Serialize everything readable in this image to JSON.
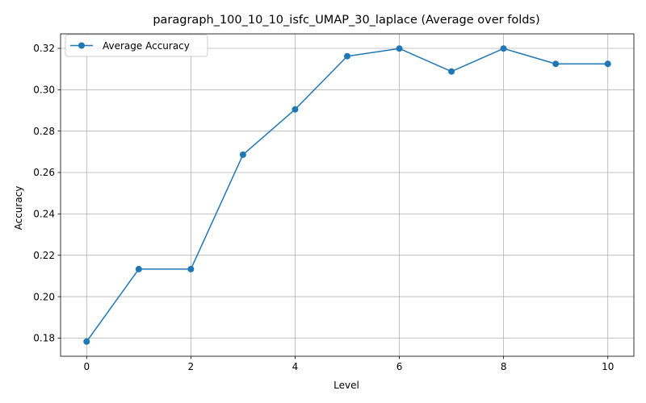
{
  "chart_data": {
    "type": "line",
    "title": "paragraph_100_10_10_isfc_UMAP_30_laplace (Average over folds)",
    "xlabel": "Level",
    "ylabel": "Accuracy",
    "xlim": [
      -0.5,
      10.5
    ],
    "ylim": [
      0.1712,
      0.327
    ],
    "x_ticks": [
      0,
      2,
      4,
      6,
      8,
      10
    ],
    "y_ticks": [
      0.18,
      0.2,
      0.22,
      0.24,
      0.26,
      0.28,
      0.3,
      0.32
    ],
    "grid": true,
    "legend_position": "upper-left",
    "series": [
      {
        "name": "Average Accuracy",
        "color": "#1f77b4",
        "marker": "circle",
        "x": [
          0,
          1,
          2,
          3,
          4,
          5,
          6,
          7,
          8,
          9,
          10
        ],
        "y": [
          0.1783,
          0.2133,
          0.2133,
          0.2686,
          0.2905,
          0.3162,
          0.3199,
          0.3088,
          0.3199,
          0.3125,
          0.3125
        ]
      }
    ]
  }
}
